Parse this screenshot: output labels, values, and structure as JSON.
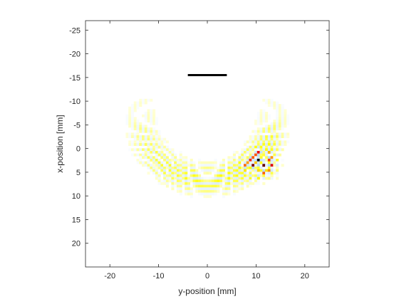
{
  "chart_data": {
    "type": "heatmap",
    "title": "",
    "xlabel": "y-position [mm]",
    "ylabel": "x-position [mm]",
    "xlim": [
      -25,
      25
    ],
    "ylim": [
      -27,
      25
    ],
    "y_axis_direction": "reversed",
    "x_ticks": [
      -20,
      -10,
      0,
      10,
      20
    ],
    "y_ticks": [
      -25,
      -20,
      -15,
      -10,
      -5,
      0,
      5,
      10,
      15,
      20
    ],
    "grid": false,
    "colormap": "hot (white background, yellow to red to black at peak)",
    "wavefront_arcs": {
      "center": [
        0,
        -7
      ],
      "radii_mm": [
        10.5,
        11.5,
        12.5,
        13.5,
        14.5,
        15.5,
        16.5
      ],
      "y_extent": [
        -22,
        22
      ]
    },
    "hotspot": {
      "y": 11.5,
      "x": 3.5,
      "peak": 1.0
    },
    "scale_bar": {
      "y_from": -4,
      "y_to": 4,
      "x": -15.5
    },
    "colors": {
      "low": "#ffff00",
      "mid": "#ff0000",
      "high": "#000000",
      "frame": "#262626"
    }
  }
}
